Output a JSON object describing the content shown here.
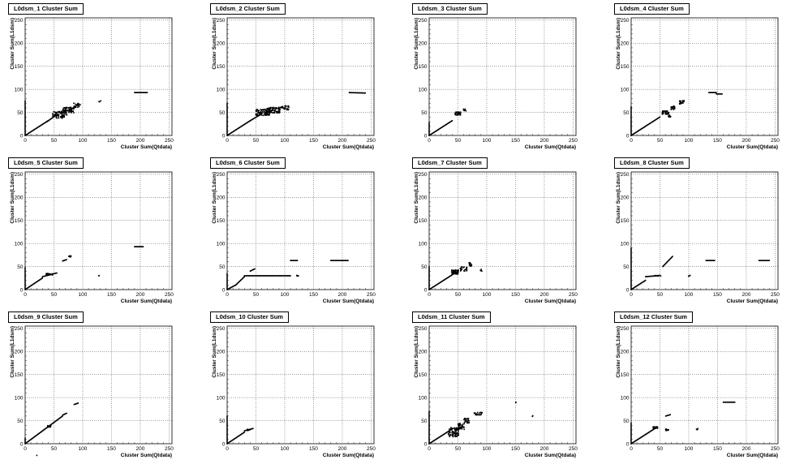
{
  "chart_data": [
    {
      "type": "scatter",
      "title": "L0dsm_1 Cluster Sum",
      "xlabel": "Cluster Sum(Qtdata)",
      "ylabel": "Cluster Sum(L1dsm)",
      "xlim": [
        0,
        255
      ],
      "ylim": [
        0,
        255
      ],
      "xticks": [
        0,
        50,
        100,
        150,
        200,
        250
      ],
      "yticks": [
        0,
        50,
        100,
        150,
        200,
        250
      ],
      "grid": true,
      "segments": [
        [
          [
            0,
            0
          ],
          [
            0,
            75
          ]
        ],
        [
          [
            0,
            0
          ],
          [
            40,
            32
          ]
        ],
        [
          [
            38,
            30
          ],
          [
            55,
            45
          ]
        ],
        [
          [
            190,
            93
          ],
          [
            212,
            93
          ]
        ]
      ],
      "clusters": [
        [
          60,
          45,
          25,
          15,
          70
        ],
        [
          75,
          55,
          20,
          12,
          60
        ],
        [
          90,
          65,
          12,
          10,
          25
        ],
        [
          130,
          75,
          4,
          4,
          3
        ]
      ]
    },
    {
      "type": "scatter",
      "title": "L0dsm_2 Cluster Sum",
      "xlabel": "Cluster Sum(Qtdata)",
      "ylabel": "Cluster Sum(L1dsm)",
      "xlim": [
        0,
        255
      ],
      "ylim": [
        0,
        255
      ],
      "xticks": [
        0,
        50,
        100,
        150,
        200,
        250
      ],
      "yticks": [
        0,
        50,
        100,
        150,
        200,
        250
      ],
      "grid": true,
      "segments": [
        [
          [
            0,
            0
          ],
          [
            0,
            70
          ]
        ],
        [
          [
            0,
            0
          ],
          [
            40,
            32
          ]
        ],
        [
          [
            40,
            32
          ],
          [
            60,
            47
          ]
        ],
        [
          [
            212,
            93
          ],
          [
            240,
            92
          ]
        ]
      ],
      "clusters": [
        [
          62,
          50,
          25,
          14,
          80
        ],
        [
          80,
          55,
          25,
          12,
          70
        ],
        [
          100,
          60,
          15,
          10,
          25
        ]
      ]
    },
    {
      "type": "scatter",
      "title": "L0dsm_3 Cluster Sum",
      "xlabel": "Cluster Sum(Qtdata)",
      "ylabel": "Cluster Sum(L1dsm)",
      "xlim": [
        0,
        255
      ],
      "ylim": [
        0,
        255
      ],
      "xticks": [
        0,
        50,
        100,
        150,
        200,
        250
      ],
      "yticks": [
        0,
        50,
        100,
        150,
        200,
        250
      ],
      "grid": true,
      "segments": [
        [
          [
            0,
            0
          ],
          [
            0,
            28
          ]
        ],
        [
          [
            0,
            0
          ],
          [
            40,
            32
          ]
        ]
      ],
      "clusters": [
        [
          50,
          48,
          10,
          8,
          30
        ],
        [
          62,
          55,
          5,
          5,
          8
        ]
      ]
    },
    {
      "type": "scatter",
      "title": "L0dsm_4 Cluster Sum",
      "xlabel": "Cluster Sum(Qtdata)",
      "ylabel": "Cluster Sum(L1dsm)",
      "xlim": [
        0,
        255
      ],
      "ylim": [
        0,
        255
      ],
      "xticks": [
        0,
        50,
        100,
        150,
        200,
        250
      ],
      "yticks": [
        0,
        50,
        100,
        150,
        200,
        250
      ],
      "grid": true,
      "segments": [
        [
          [
            0,
            0
          ],
          [
            0,
            62
          ]
        ],
        [
          [
            0,
            0
          ],
          [
            50,
            40
          ]
        ],
        [
          [
            135,
            93
          ],
          [
            148,
            93
          ]
        ],
        [
          [
            148,
            90
          ],
          [
            158,
            90
          ]
        ]
      ],
      "clusters": [
        [
          60,
          50,
          12,
          8,
          40
        ],
        [
          72,
          60,
          8,
          8,
          20
        ],
        [
          88,
          72,
          8,
          8,
          20
        ],
        [
          65,
          42,
          8,
          4,
          12
        ]
      ]
    },
    {
      "type": "scatter",
      "title": "L0dsm_5 Cluster Sum",
      "xlabel": "Cluster Sum(Qtdata)",
      "ylabel": "Cluster Sum(L1dsm)",
      "xlim": [
        0,
        255
      ],
      "ylim": [
        0,
        255
      ],
      "xticks": [
        0,
        50,
        100,
        150,
        200,
        250
      ],
      "yticks": [
        0,
        50,
        100,
        150,
        200,
        250
      ],
      "grid": true,
      "segments": [
        [
          [
            0,
            0
          ],
          [
            0,
            48
          ]
        ],
        [
          [
            0,
            0
          ],
          [
            30,
            25
          ]
        ],
        [
          [
            30,
            28
          ],
          [
            55,
            36
          ]
        ],
        [
          [
            190,
            93
          ],
          [
            205,
            93
          ]
        ],
        [
          [
            65,
            62
          ],
          [
            72,
            65
          ]
        ]
      ],
      "clusters": [
        [
          42,
          33,
          12,
          4,
          20
        ],
        [
          78,
          72,
          4,
          3,
          10
        ],
        [
          128,
          30,
          2,
          2,
          2
        ]
      ]
    },
    {
      "type": "scatter",
      "title": "L0dsm_6 Cluster Sum",
      "xlabel": "Cluster Sum(Qtdata)",
      "ylabel": "Cluster Sum(L1dsm)",
      "xlim": [
        0,
        255
      ],
      "ylim": [
        0,
        255
      ],
      "xticks": [
        0,
        50,
        100,
        150,
        200,
        250
      ],
      "yticks": [
        0,
        50,
        100,
        150,
        200,
        250
      ],
      "grid": true,
      "segments": [
        [
          [
            0,
            0
          ],
          [
            0,
            35
          ]
        ],
        [
          [
            0,
            0
          ],
          [
            15,
            10
          ]
        ],
        [
          [
            15,
            10
          ],
          [
            30,
            28
          ]
        ],
        [
          [
            30,
            30
          ],
          [
            110,
            30
          ]
        ],
        [
          [
            110,
            63
          ],
          [
            122,
            63
          ]
        ],
        [
          [
            180,
            63
          ],
          [
            210,
            63
          ]
        ],
        [
          [
            40,
            40
          ],
          [
            48,
            45
          ]
        ]
      ],
      "clusters": [
        [
          122,
          30,
          4,
          2,
          4
        ]
      ]
    },
    {
      "type": "scatter",
      "title": "L0dsm_7 Cluster Sum",
      "xlabel": "Cluster Sum(Qtdata)",
      "ylabel": "Cluster Sum(L1dsm)",
      "xlim": [
        0,
        255
      ],
      "ylim": [
        0,
        255
      ],
      "xticks": [
        0,
        50,
        100,
        150,
        200,
        250
      ],
      "yticks": [
        0,
        50,
        100,
        150,
        200,
        250
      ],
      "grid": true,
      "segments": [
        [
          [
            0,
            0
          ],
          [
            0,
            50
          ]
        ],
        [
          [
            0,
            0
          ],
          [
            40,
            32
          ]
        ]
      ],
      "clusters": [
        [
          45,
          38,
          12,
          10,
          60
        ],
        [
          60,
          45,
          12,
          10,
          25
        ],
        [
          72,
          55,
          6,
          8,
          12
        ],
        [
          90,
          42,
          4,
          4,
          4
        ]
      ]
    },
    {
      "type": "scatter",
      "title": "L0dsm_8 Cluster Sum",
      "xlabel": "Cluster Sum(Qtdata)",
      "ylabel": "Cluster Sum(L1dsm)",
      "xlim": [
        0,
        255
      ],
      "ylim": [
        0,
        255
      ],
      "xticks": [
        0,
        50,
        100,
        150,
        200,
        250
      ],
      "yticks": [
        0,
        50,
        100,
        150,
        200,
        250
      ],
      "grid": true,
      "segments": [
        [
          [
            0,
            0
          ],
          [
            0,
            90
          ]
        ],
        [
          [
            0,
            0
          ],
          [
            25,
            20
          ]
        ],
        [
          [
            25,
            28
          ],
          [
            45,
            30
          ]
        ],
        [
          [
            55,
            50
          ],
          [
            72,
            72
          ]
        ],
        [
          [
            130,
            63
          ],
          [
            145,
            63
          ]
        ],
        [
          [
            222,
            63
          ],
          [
            240,
            63
          ]
        ]
      ],
      "clusters": [
        [
          45,
          30,
          15,
          2,
          8
        ],
        [
          100,
          30,
          6,
          2,
          4
        ]
      ]
    },
    {
      "type": "scatter",
      "title": "L0dsm_9 Cluster Sum",
      "xlabel": "Cluster Sum(Qtdata)",
      "ylabel": "Cluster Sum(L1dsm)",
      "xlim": [
        0,
        255
      ],
      "ylim": [
        0,
        255
      ],
      "xticks": [
        0,
        50,
        100,
        150,
        200,
        250
      ],
      "yticks": [
        0,
        50,
        100,
        150,
        200,
        250
      ],
      "grid": true,
      "segments": [
        [
          [
            0,
            0
          ],
          [
            0,
            12
          ]
        ],
        [
          [
            0,
            0
          ],
          [
            65,
            60
          ]
        ],
        [
          [
            85,
            85
          ],
          [
            92,
            88
          ]
        ],
        [
          [
            65,
            62
          ],
          [
            72,
            66
          ]
        ]
      ],
      "clusters": [
        [
          42,
          38,
          6,
          4,
          15
        ],
        [
          20,
          -25,
          2,
          2,
          1
        ]
      ]
    },
    {
      "type": "scatter",
      "title": "L0dsm_10 Cluster Sum",
      "xlabel": "Cluster Sum(Qtdata)",
      "ylabel": "Cluster Sum(L1dsm)",
      "xlim": [
        0,
        255
      ],
      "ylim": [
        0,
        255
      ],
      "xticks": [
        0,
        50,
        100,
        150,
        200,
        250
      ],
      "yticks": [
        0,
        50,
        100,
        150,
        200,
        250
      ],
      "grid": true,
      "segments": [
        [
          [
            0,
            0
          ],
          [
            0,
            60
          ]
        ],
        [
          [
            0,
            0
          ],
          [
            30,
            25
          ]
        ],
        [
          [
            30,
            28
          ],
          [
            45,
            33
          ]
        ]
      ],
      "clusters": [
        [
          38,
          30,
          6,
          3,
          10
        ]
      ]
    },
    {
      "type": "scatter",
      "title": "L0dsm_11 Cluster Sum",
      "xlabel": "Cluster Sum(Qtdata)",
      "ylabel": "Cluster Sum(L1dsm)",
      "xlim": [
        0,
        255
      ],
      "ylim": [
        0,
        255
      ],
      "xticks": [
        0,
        50,
        100,
        150,
        200,
        250
      ],
      "yticks": [
        0,
        50,
        100,
        150,
        200,
        250
      ],
      "grid": true,
      "segments": [
        [
          [
            0,
            0
          ],
          [
            0,
            70
          ]
        ],
        [
          [
            0,
            0
          ],
          [
            40,
            32
          ]
        ]
      ],
      "clusters": [
        [
          42,
          25,
          18,
          20,
          90
        ],
        [
          55,
          38,
          12,
          14,
          50
        ],
        [
          65,
          50,
          10,
          10,
          25
        ],
        [
          85,
          65,
          15,
          6,
          20
        ],
        [
          150,
          90,
          2,
          2,
          2
        ],
        [
          180,
          60,
          2,
          2,
          2
        ]
      ]
    },
    {
      "type": "scatter",
      "title": "L0dsm_12 Cluster Sum",
      "xlabel": "Cluster Sum(Qtdata)",
      "ylabel": "Cluster Sum(L1dsm)",
      "xlim": [
        0,
        255
      ],
      "ylim": [
        0,
        255
      ],
      "xticks": [
        0,
        50,
        100,
        150,
        200,
        250
      ],
      "yticks": [
        0,
        50,
        100,
        150,
        200,
        250
      ],
      "grid": true,
      "segments": [
        [
          [
            0,
            0
          ],
          [
            0,
            45
          ]
        ],
        [
          [
            0,
            0
          ],
          [
            40,
            32
          ]
        ],
        [
          [
            160,
            90
          ],
          [
            180,
            90
          ]
        ],
        [
          [
            60,
            60
          ],
          [
            68,
            63
          ]
        ]
      ],
      "clusters": [
        [
          42,
          35,
          8,
          4,
          20
        ],
        [
          62,
          30,
          6,
          4,
          10
        ],
        [
          115,
          32,
          4,
          3,
          4
        ]
      ]
    }
  ]
}
